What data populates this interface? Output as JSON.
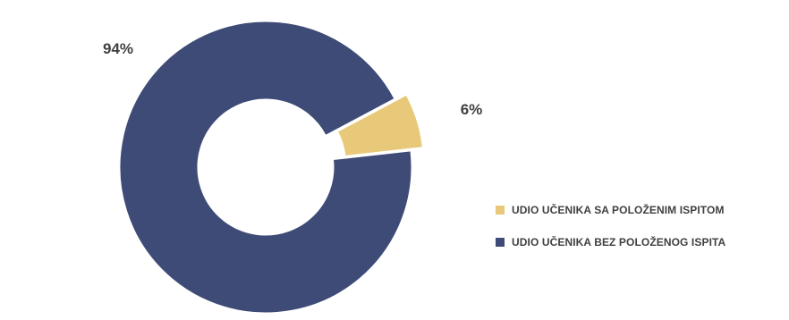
{
  "chart_data": {
    "type": "pie",
    "subtype": "donut",
    "title": "",
    "legend_position": "right",
    "series": [
      {
        "name": "UDIO UČENIKA SA POLOŽENIM ISPITOM",
        "value": 6,
        "label": "6%",
        "color": "#E8C97A",
        "exploded": true
      },
      {
        "name": "UDIO UČENIKA BEZ POLOŽENOG ISPITA",
        "value": 94,
        "label": "94%",
        "color": "#3F4B77",
        "exploded": false
      }
    ],
    "legend": [
      {
        "label": "UDIO UČENIKA SA POLOŽENIM ISPITOM",
        "color": "#E8C97A"
      },
      {
        "label": "UDIO UČENIKA BEZ POLOŽENOG ISPITA",
        "color": "#3F4B77"
      }
    ]
  }
}
